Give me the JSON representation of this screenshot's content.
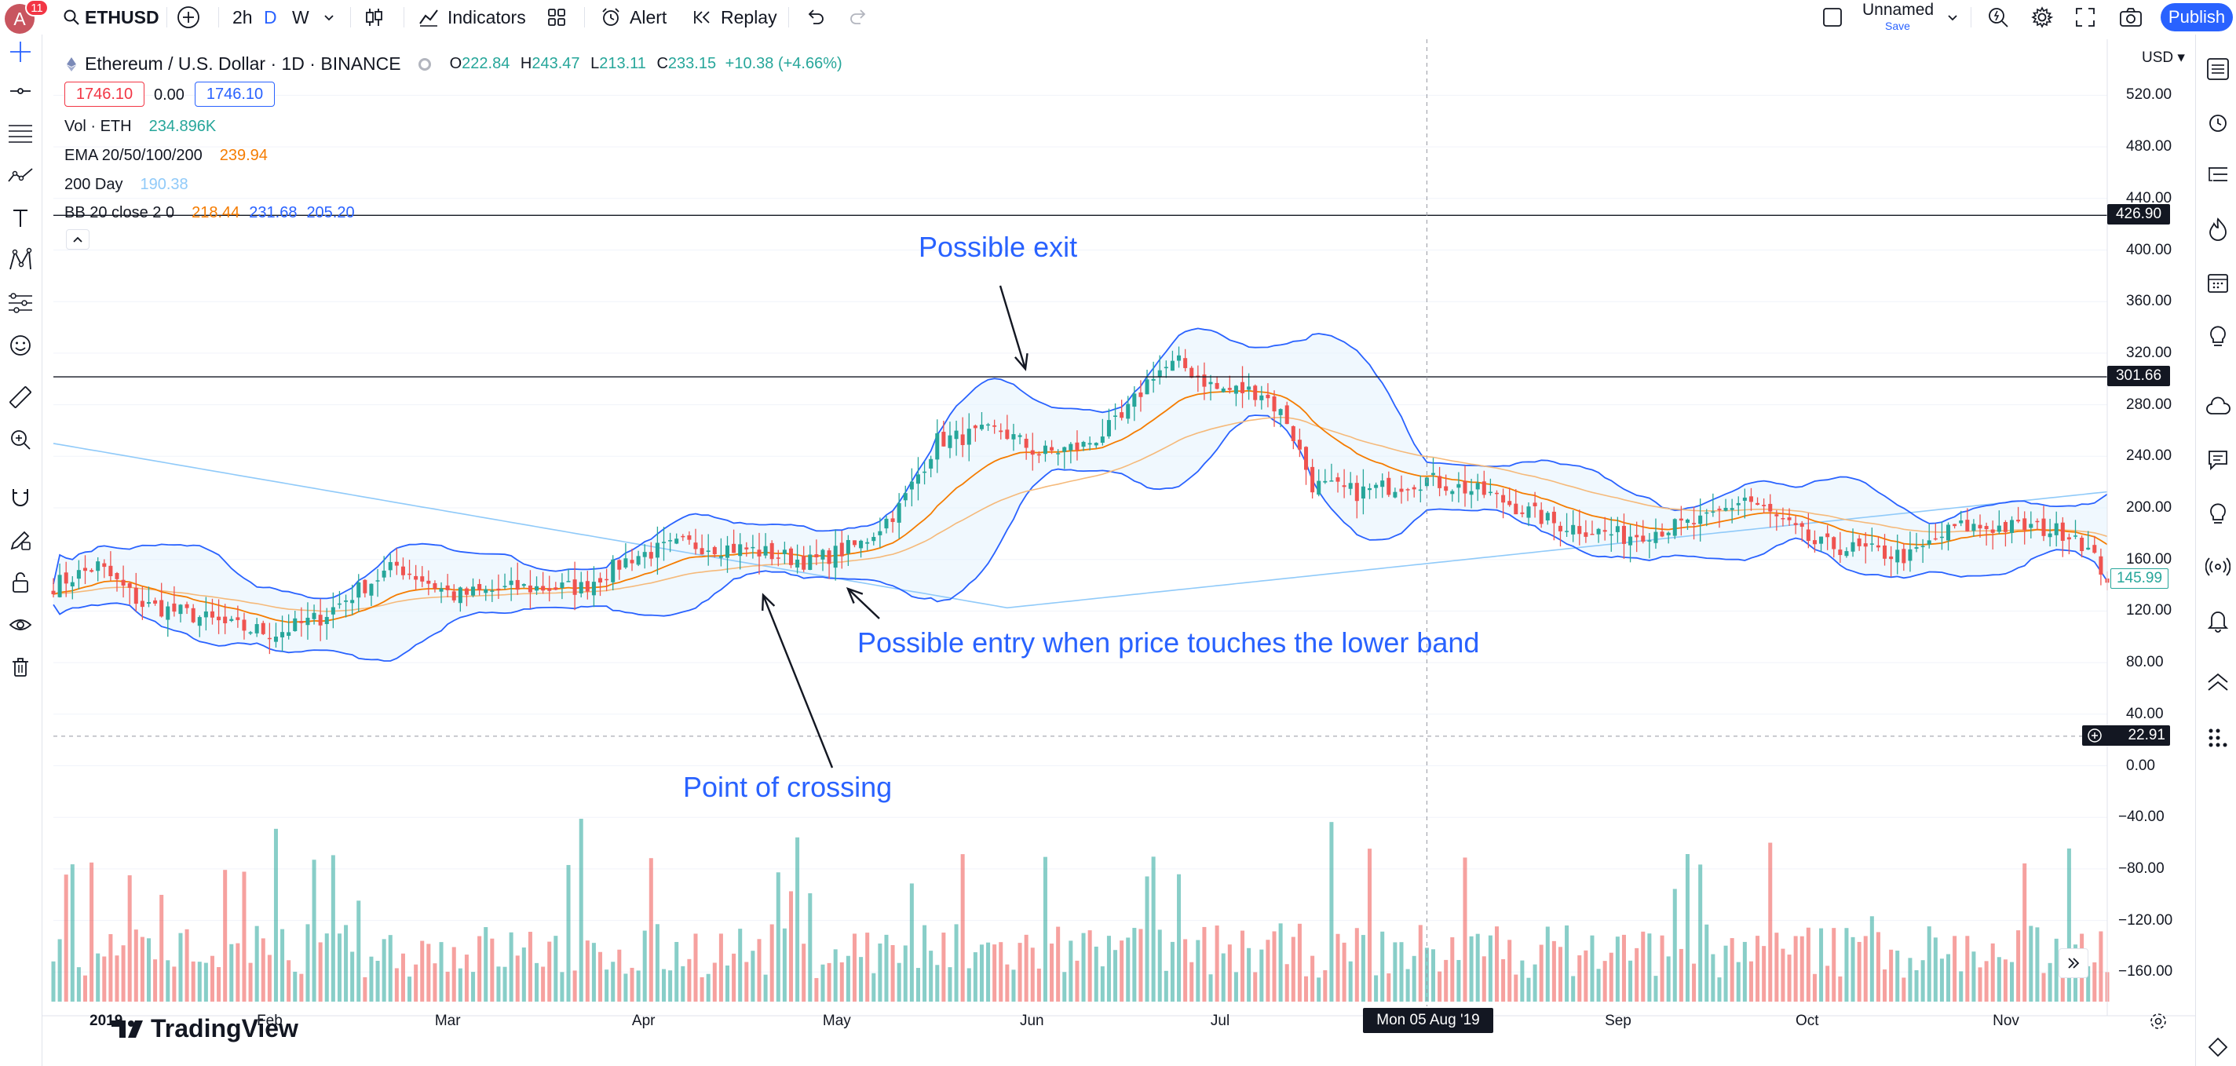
{
  "toolbar": {
    "avatar_letter": "A",
    "notifications": "11",
    "symbol": "ETHUSD",
    "intervals": [
      "2h",
      "D",
      "W"
    ],
    "indicators_label": "Indicators",
    "alert_label": "Alert",
    "replay_label": "Replay",
    "layout_name": "Unnamed",
    "layout_save": "Save",
    "publish_label": "Publish"
  },
  "legend": {
    "title": "Ethereum / U.S. Dollar · 1D · BINANCE",
    "o_label": "O",
    "o": "222.84",
    "h_label": "H",
    "h": "243.47",
    "l_label": "L",
    "l": "213.11",
    "c_label": "C",
    "c": "233.15",
    "change": "+10.38 (+4.66%)",
    "bid": "1746.10",
    "spread": "0.00",
    "ask": "1746.10",
    "vol_label": "Vol · ETH",
    "vol_value": "234.896K",
    "ema_label": "EMA 20/50/100/200",
    "ema_value": "239.94",
    "day200_label": "200 Day",
    "day200_value": "190.38",
    "bb_label": "BB 20 close 2 0",
    "bb_v1": "218.44",
    "bb_v2": "231.68",
    "bb_v3": "205.20"
  },
  "annotations": {
    "exit": "Possible exit",
    "entry": "Possible entry when price touches the lower band",
    "crossing": "Point of crossing"
  },
  "axis": {
    "currency": "USD",
    "price_ticks": [
      "520.00",
      "480.00",
      "440.00",
      "400.00",
      "360.00",
      "320.00",
      "280.00",
      "240.00",
      "200.00",
      "160.00",
      "120.00",
      "80.00",
      "40.00",
      "0.00",
      "−40.00",
      "−80.00",
      "−120.00",
      "−160.00"
    ],
    "time_ticks": [
      "2019",
      "Feb",
      "Mar",
      "Apr",
      "May",
      "Jun",
      "Jul",
      "Sep",
      "Oct",
      "Nov"
    ],
    "crosshair_date": "Mon 05 Aug '19",
    "hline_upper": "426.90",
    "hline_lower": "301.66",
    "last_price": "145.99",
    "crosshair_price": "22.91"
  },
  "branding": "TradingView",
  "colors": {
    "up": "#26a69a",
    "down": "#ef5350",
    "accent": "#2962ff",
    "ema_fast": "#f57c00",
    "ema_slow": "#f5b97a",
    "sma200": "#90caf9",
    "band": "#2962ff",
    "band_fill": "#e3f2fd"
  },
  "chart_data": {
    "type": "candlestick",
    "title": "Ethereum / U.S. Dollar · 1D · BINANCE",
    "ylim": [
      -180,
      540
    ],
    "x_range": [
      "2019-01-01",
      "2019-11-20"
    ],
    "price_path": {
      "dates": [
        "2019-01-01",
        "2019-01-08",
        "2019-01-15",
        "2019-01-22",
        "2019-01-29",
        "2019-02-05",
        "2019-02-12",
        "2019-02-19",
        "2019-02-24",
        "2019-03-05",
        "2019-03-15",
        "2019-03-25",
        "2019-04-02",
        "2019-04-10",
        "2019-04-20",
        "2019-04-30",
        "2019-05-08",
        "2019-05-14",
        "2019-05-20",
        "2019-05-30",
        "2019-06-05",
        "2019-06-12",
        "2019-06-18",
        "2019-06-23",
        "2019-06-27",
        "2019-07-03",
        "2019-07-10",
        "2019-07-14",
        "2019-07-18",
        "2019-07-25",
        "2019-08-05",
        "2019-08-15",
        "2019-08-25",
        "2019-09-05",
        "2019-09-18",
        "2019-09-24",
        "2019-10-05",
        "2019-10-20",
        "2019-10-27",
        "2019-11-08",
        "2019-11-15",
        "2019-11-20"
      ],
      "close": [
        140,
        155,
        125,
        118,
        108,
        103,
        115,
        140,
        155,
        132,
        138,
        138,
        162,
        172,
        168,
        158,
        172,
        200,
        252,
        260,
        242,
        248,
        268,
        305,
        312,
        292,
        290,
        268,
        218,
        212,
        222,
        210,
        188,
        178,
        190,
        208,
        172,
        162,
        185,
        185,
        180,
        146
      ]
    },
    "horizontal_lines": [
      426.9,
      301.66
    ]
  }
}
